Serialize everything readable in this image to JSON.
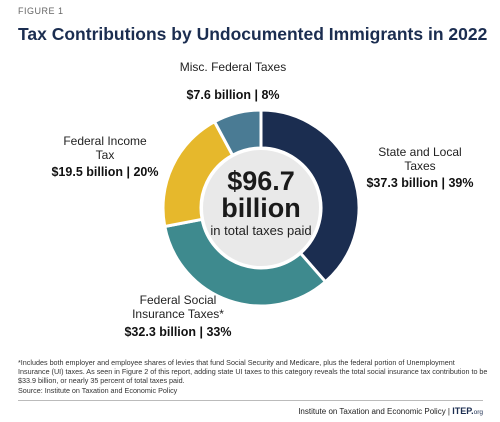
{
  "figure_label": "FIGURE 1",
  "chart_data": {
    "type": "donut",
    "title": "Tax Contributions by Undocumented Immigrants in 2022",
    "categories": [
      "State and Local Taxes",
      "Federal Social Insurance Taxes*",
      "Federal Income Tax",
      "Misc. Federal Taxes"
    ],
    "values": [
      37.3,
      32.3,
      19.5,
      7.6
    ],
    "value_labels": [
      "$37.3 billion | 39%",
      "$32.3 billion | 33%",
      "$19.5 billion | 20%",
      "$7.6 billion | 8%"
    ],
    "colors": [
      "#1b2d50",
      "#3e8a8e",
      "#e6b82c",
      "#4a7b94"
    ],
    "center_text": "$96.7 billion",
    "center_subtext": "in total taxes paid"
  },
  "footnote": "*Includes both employer and employee shares of levies that fund Social Security and Medicare, plus the federal portion of Unemployment Insurance (UI) taxes. As seen in Figure 2 of this report, adding state UI taxes to this category reveals the total social insurance tax contribution to be $33.9 billion, or nearly 35 percent of total taxes paid.",
  "source": "Source: Institute on Taxation and Economic Policy",
  "footer": {
    "org": "Institute on Taxation and Economic Policy",
    "logo": "ITEP.",
    "logo_suffix": "org"
  }
}
